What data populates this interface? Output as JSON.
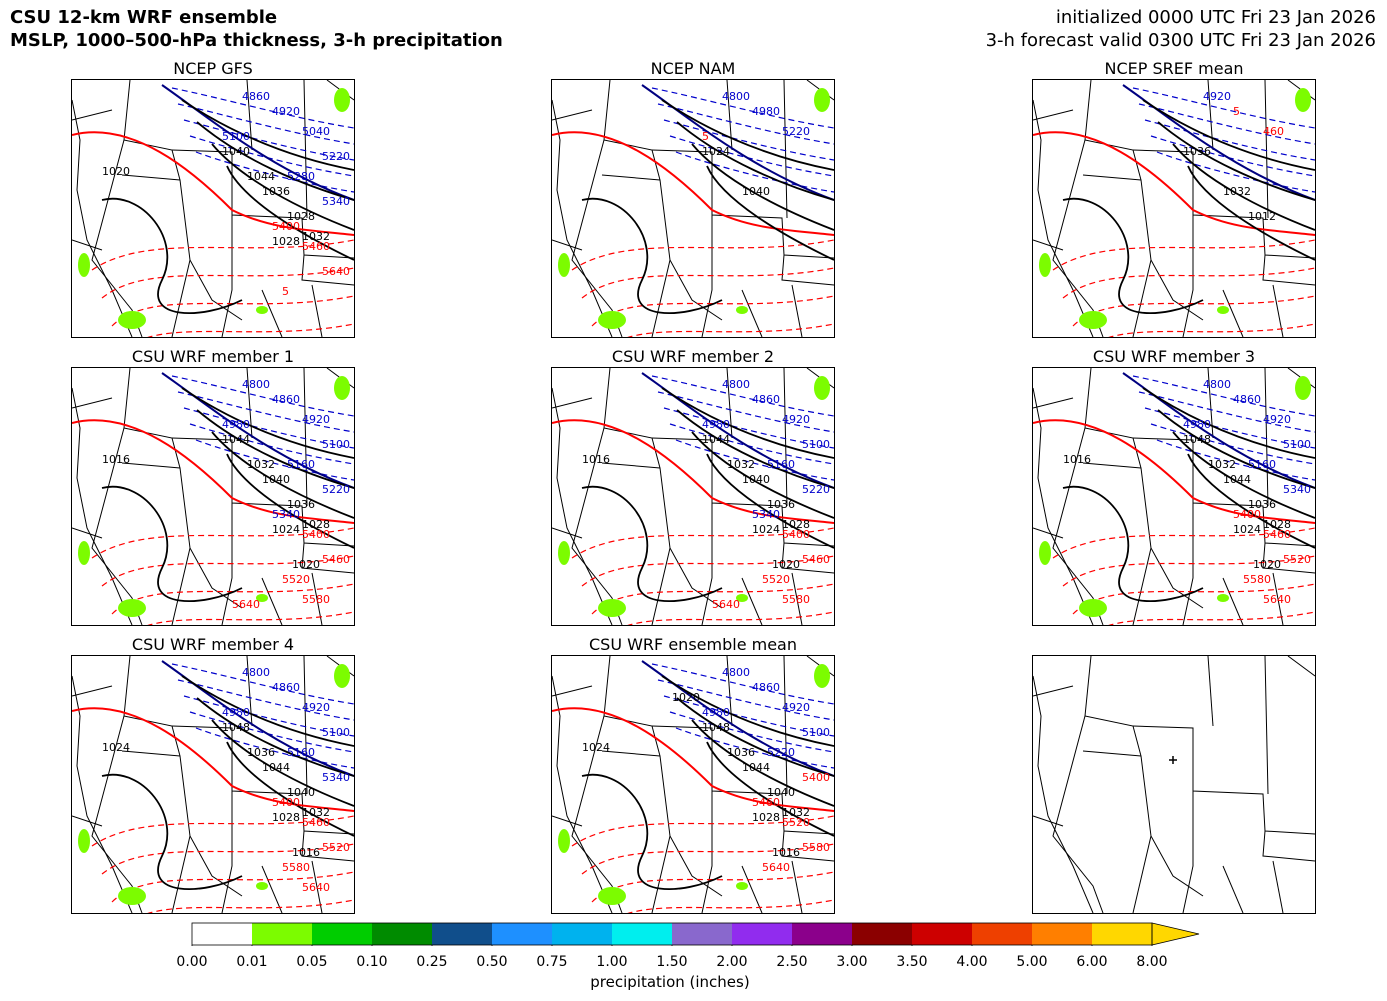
{
  "header": {
    "title_line1": "CSU 12-km WRF ensemble",
    "title_line2": "MSLP, 1000–500-hPa thickness, 3-h precipitation",
    "init_text": "initialized 0000 UTC Fri 23 Jan 2026",
    "valid_text": "3-h forecast valid 0300 UTC Fri 23 Jan 2026"
  },
  "panels": [
    {
      "title": "NCEP GFS",
      "pressure_labels": [
        "1040",
        "1036",
        "1028",
        "1044",
        "1032",
        "1028",
        "1020"
      ],
      "thickness_labels": [
        "4860",
        "4920",
        "5040",
        "5100",
        "5220",
        "5280",
        "5340",
        "5400",
        "5460",
        "5640",
        "5"
      ]
    },
    {
      "title": "NCEP NAM",
      "pressure_labels": [
        "1024",
        "1040"
      ],
      "thickness_labels": [
        "4800",
        "4980",
        "5220",
        "5"
      ]
    },
    {
      "title": "NCEP SREF mean",
      "pressure_labels": [
        "1036",
        "1032",
        "1012"
      ],
      "thickness_labels": [
        "4920",
        "5",
        "460"
      ]
    },
    {
      "title": "CSU WRF member 1",
      "pressure_labels": [
        "1044",
        "1040",
        "1036",
        "1032",
        "1028",
        "1024",
        "1016",
        "1020"
      ],
      "thickness_labels": [
        "4800",
        "4860",
        "4920",
        "4980",
        "5100",
        "5160",
        "5220",
        "5340",
        "5400",
        "5460",
        "5520",
        "5580",
        "5640"
      ]
    },
    {
      "title": "CSU WRF member 2",
      "pressure_labels": [
        "1044",
        "1040",
        "1036",
        "1032",
        "1028",
        "1024",
        "1016",
        "1020"
      ],
      "thickness_labels": [
        "4800",
        "4860",
        "4920",
        "4980",
        "5100",
        "5160",
        "5220",
        "5340",
        "5400",
        "5460",
        "5520",
        "5580",
        "5640"
      ]
    },
    {
      "title": "CSU WRF member 3",
      "pressure_labels": [
        "1048",
        "1044",
        "1036",
        "1032",
        "1028",
        "1024",
        "1016",
        "1020"
      ],
      "thickness_labels": [
        "4800",
        "4860",
        "4920",
        "4980",
        "5100",
        "5160",
        "5340",
        "5400",
        "5460",
        "5520",
        "5580",
        "5640"
      ]
    },
    {
      "title": "CSU WRF member 4",
      "pressure_labels": [
        "1048",
        "1044",
        "1040",
        "1036",
        "1032",
        "1028",
        "1024",
        "1016"
      ],
      "thickness_labels": [
        "4800",
        "4860",
        "4920",
        "4980",
        "5100",
        "5160",
        "5340",
        "5400",
        "5460",
        "5520",
        "5580",
        "5640"
      ]
    },
    {
      "title": "CSU WRF ensemble mean",
      "pressure_labels": [
        "1048",
        "1044",
        "1040",
        "1036",
        "1032",
        "1028",
        "1024",
        "1016",
        "1020"
      ],
      "thickness_labels": [
        "4800",
        "4860",
        "4920",
        "4980",
        "5100",
        "5220",
        "5400",
        "5460",
        "5520",
        "5580",
        "5640"
      ]
    },
    {
      "title": "",
      "pressure_labels": [],
      "thickness_labels": []
    }
  ],
  "colorbar": {
    "label": "precipitation (inches)",
    "ticks": [
      "0.00",
      "0.01",
      "0.05",
      "0.10",
      "0.25",
      "0.50",
      "0.75",
      "1.00",
      "1.50",
      "2.00",
      "2.50",
      "3.00",
      "3.50",
      "4.00",
      "5.00",
      "6.00",
      "8.00"
    ],
    "colors": [
      "#ffffff",
      "#7cfc00",
      "#00cd00",
      "#008b00",
      "#104e8b",
      "#1e90ff",
      "#00b2ee",
      "#00eeee",
      "#8968cd",
      "#912cee",
      "#8b008b",
      "#8b0000",
      "#cd0000",
      "#ee4000",
      "#ff7f00",
      "#ffd700"
    ],
    "extend_color": "#ffd700"
  },
  "styles": {
    "pressure_color": "#000000",
    "thickness_cold_color": "#0000cc",
    "thickness_warm_color": "#ff0000",
    "thickness_5400_color": "#ff0000",
    "thickness_5280_color": "#000080",
    "precip_light_color": "#7cfc00"
  }
}
